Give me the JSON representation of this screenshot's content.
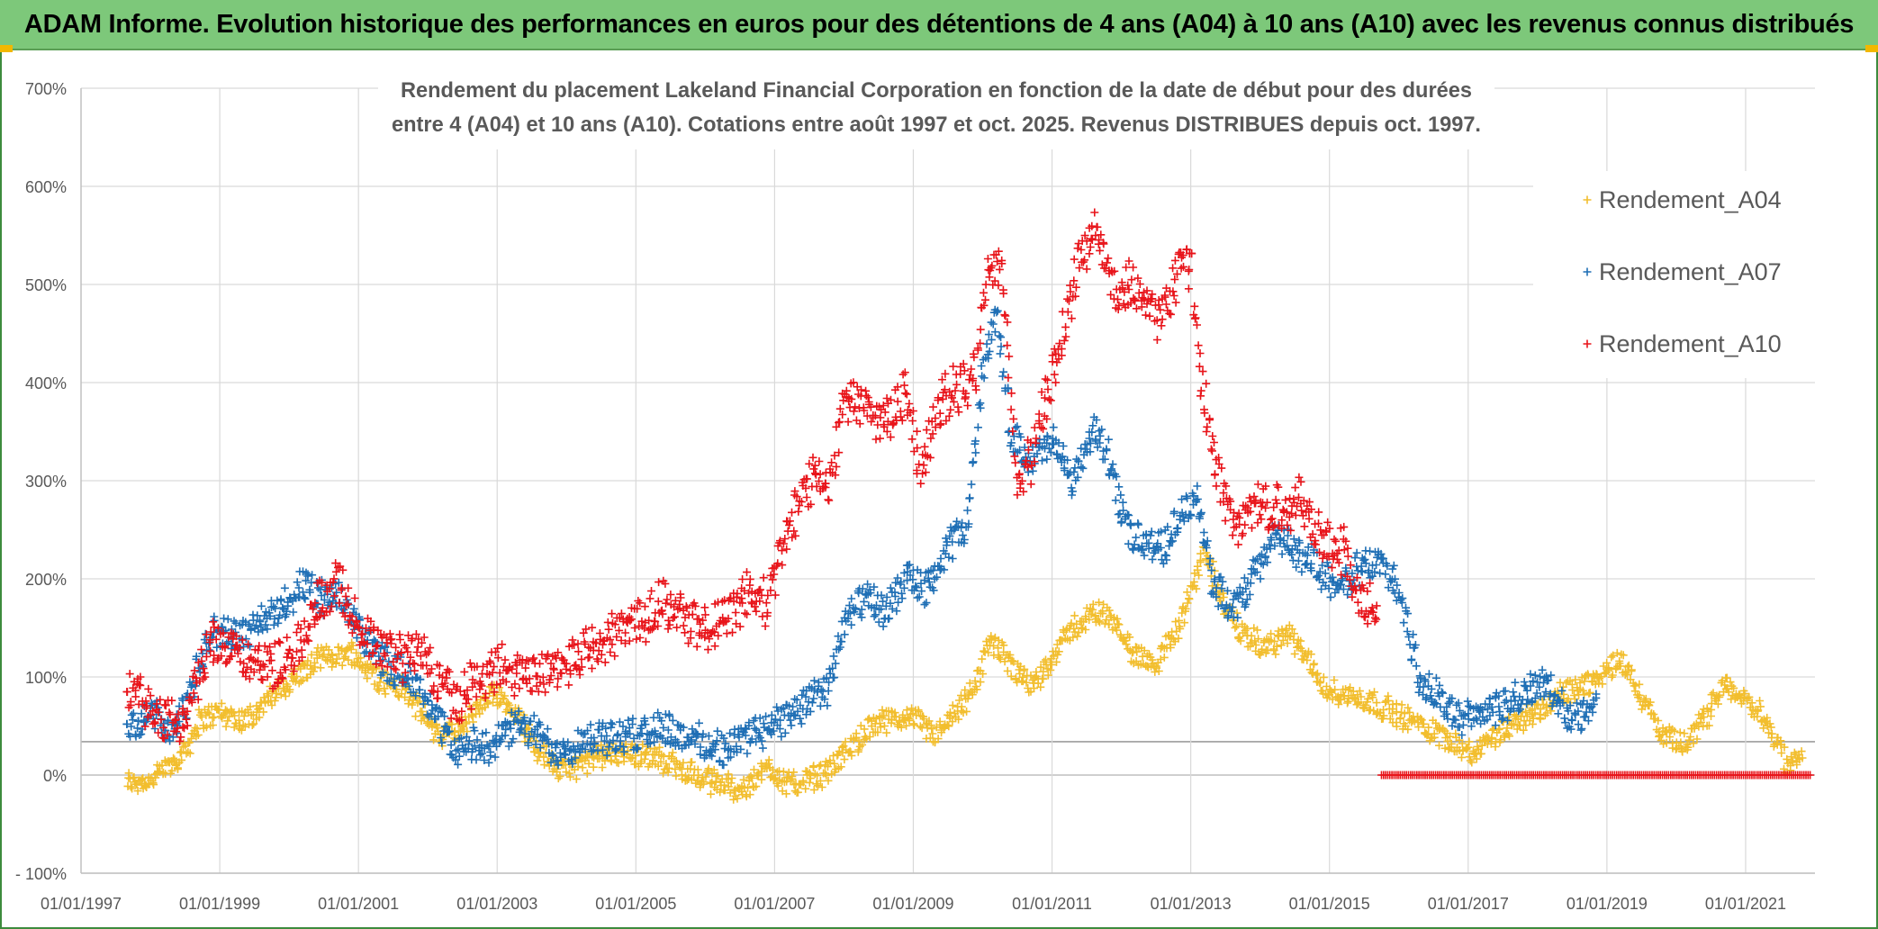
{
  "banner": {
    "title": "ADAM Informe. Evolution historique des performances en euros pour des détentions de 4 ans (A04) à 10 ans (A10) avec les revenus connus distribués"
  },
  "colors": {
    "banner_bg": "#7dc87a",
    "a04": "#f2be2e",
    "a07": "#1f6fb5",
    "a10": "#e8141a",
    "grid": "#d9d9d9",
    "text": "#595959"
  },
  "chart_data": {
    "type": "scatter",
    "title_lines": [
      "Rendement du placement Lakeland Financial Corporation en fonction de la date de début pour des durées",
      "entre 4 (A04) et 10 ans (A10). Cotations entre août 1997 et oct. 2025. Revenus DISTRIBUES depuis oct. 1997."
    ],
    "xlabel": "",
    "ylabel": "",
    "x_ticks": [
      "01/01/1997",
      "01/01/1999",
      "01/01/2001",
      "01/01/2003",
      "01/01/2005",
      "01/01/2007",
      "01/01/2009",
      "01/01/2011",
      "01/01/2013",
      "01/01/2015",
      "01/01/2017",
      "01/01/2019",
      "01/01/2021"
    ],
    "y_ticks": [
      "- 100%",
      "0%",
      "100%",
      "200%",
      "300%",
      "400%",
      "500%",
      "600%",
      "700%"
    ],
    "xlim": [
      1997.0,
      2022.0
    ],
    "ylim": [
      -100,
      700
    ],
    "grid": true,
    "legend_position": "top-right",
    "marker": "+",
    "series": [
      {
        "name": "Rendement_A04",
        "color": "#f2be2e",
        "x_range": [
          1997.67,
          2021.83
        ],
        "points": [
          [
            1997.67,
            -8
          ],
          [
            1998.0,
            -5
          ],
          [
            1998.3,
            10
          ],
          [
            1998.5,
            25
          ],
          [
            1998.7,
            55
          ],
          [
            1999.0,
            65
          ],
          [
            1999.3,
            55
          ],
          [
            1999.6,
            70
          ],
          [
            2000.0,
            95
          ],
          [
            2000.5,
            120
          ],
          [
            2000.9,
            125
          ],
          [
            2001.1,
            110
          ],
          [
            2001.4,
            95
          ],
          [
            2001.7,
            85
          ],
          [
            2002.0,
            55
          ],
          [
            2002.2,
            40
          ],
          [
            2002.4,
            45
          ],
          [
            2002.7,
            65
          ],
          [
            2003.0,
            85
          ],
          [
            2003.3,
            60
          ],
          [
            2003.6,
            25
          ],
          [
            2003.9,
            5
          ],
          [
            2004.2,
            10
          ],
          [
            2004.5,
            20
          ],
          [
            2004.8,
            25
          ],
          [
            2005.1,
            20
          ],
          [
            2005.4,
            15
          ],
          [
            2005.7,
            5
          ],
          [
            2006.0,
            -5
          ],
          [
            2006.3,
            -10
          ],
          [
            2006.6,
            -15
          ],
          [
            2006.9,
            10
          ],
          [
            2007.2,
            -10
          ],
          [
            2007.5,
            -5
          ],
          [
            2007.8,
            5
          ],
          [
            2008.1,
            30
          ],
          [
            2008.4,
            50
          ],
          [
            2008.7,
            55
          ],
          [
            2009.0,
            60
          ],
          [
            2009.3,
            40
          ],
          [
            2009.6,
            60
          ],
          [
            2009.9,
            90
          ],
          [
            2010.1,
            140
          ],
          [
            2010.4,
            110
          ],
          [
            2010.7,
            90
          ],
          [
            2011.0,
            120
          ],
          [
            2011.3,
            150
          ],
          [
            2011.6,
            165
          ],
          [
            2011.9,
            160
          ],
          [
            2012.2,
            120
          ],
          [
            2012.5,
            115
          ],
          [
            2012.8,
            145
          ],
          [
            2013.0,
            185
          ],
          [
            2013.2,
            230
          ],
          [
            2013.5,
            170
          ],
          [
            2013.8,
            140
          ],
          [
            2014.1,
            130
          ],
          [
            2014.4,
            145
          ],
          [
            2014.7,
            115
          ],
          [
            2015.0,
            85
          ],
          [
            2015.3,
            80
          ],
          [
            2015.6,
            75
          ],
          [
            2015.9,
            65
          ],
          [
            2016.2,
            55
          ],
          [
            2016.5,
            45
          ],
          [
            2016.8,
            35
          ],
          [
            2017.1,
            20
          ],
          [
            2017.4,
            40
          ],
          [
            2017.7,
            55
          ],
          [
            2018.0,
            65
          ],
          [
            2018.3,
            80
          ],
          [
            2018.6,
            90
          ],
          [
            2018.9,
            100
          ],
          [
            2019.2,
            120
          ],
          [
            2019.5,
            80
          ],
          [
            2019.8,
            40
          ],
          [
            2020.1,
            30
          ],
          [
            2020.4,
            55
          ],
          [
            2020.7,
            95
          ],
          [
            2021.0,
            75
          ],
          [
            2021.2,
            65
          ],
          [
            2021.45,
            35
          ],
          [
            2021.6,
            10
          ],
          [
            2021.83,
            20
          ]
        ]
      },
      {
        "name": "Rendement_A07",
        "color": "#1f6fb5",
        "x_range": [
          1997.67,
          2018.85
        ],
        "points": [
          [
            1997.67,
            50
          ],
          [
            1997.9,
            55
          ],
          [
            1998.1,
            60
          ],
          [
            1998.3,
            45
          ],
          [
            1998.5,
            70
          ],
          [
            1998.8,
            130
          ],
          [
            1999.0,
            150
          ],
          [
            1999.3,
            140
          ],
          [
            1999.6,
            155
          ],
          [
            1999.9,
            175
          ],
          [
            2000.2,
            190
          ],
          [
            2000.5,
            180
          ],
          [
            2000.8,
            175
          ],
          [
            2001.0,
            150
          ],
          [
            2001.3,
            120
          ],
          [
            2001.6,
            105
          ],
          [
            2001.9,
            95
          ],
          [
            2002.1,
            60
          ],
          [
            2002.4,
            25
          ],
          [
            2002.7,
            30
          ],
          [
            2003.0,
            35
          ],
          [
            2003.3,
            50
          ],
          [
            2003.6,
            40
          ],
          [
            2003.9,
            25
          ],
          [
            2004.2,
            35
          ],
          [
            2004.5,
            40
          ],
          [
            2004.8,
            35
          ],
          [
            2005.1,
            45
          ],
          [
            2005.4,
            50
          ],
          [
            2005.7,
            40
          ],
          [
            2006.0,
            30
          ],
          [
            2006.3,
            25
          ],
          [
            2006.6,
            40
          ],
          [
            2006.9,
            50
          ],
          [
            2007.2,
            60
          ],
          [
            2007.5,
            75
          ],
          [
            2007.8,
            90
          ],
          [
            2008.0,
            155
          ],
          [
            2008.3,
            180
          ],
          [
            2008.6,
            165
          ],
          [
            2008.9,
            200
          ],
          [
            2009.2,
            190
          ],
          [
            2009.5,
            230
          ],
          [
            2009.8,
            260
          ],
          [
            2010.0,
            420
          ],
          [
            2010.2,
            470
          ],
          [
            2010.4,
            350
          ],
          [
            2010.7,
            320
          ],
          [
            2011.0,
            340
          ],
          [
            2011.3,
            300
          ],
          [
            2011.6,
            350
          ],
          [
            2011.8,
            330
          ],
          [
            2012.0,
            260
          ],
          [
            2012.3,
            240
          ],
          [
            2012.6,
            230
          ],
          [
            2012.9,
            270
          ],
          [
            2013.1,
            285
          ],
          [
            2013.3,
            200
          ],
          [
            2013.6,
            165
          ],
          [
            2013.9,
            200
          ],
          [
            2014.2,
            245
          ],
          [
            2014.5,
            230
          ],
          [
            2014.8,
            215
          ],
          [
            2015.1,
            185
          ],
          [
            2015.4,
            210
          ],
          [
            2015.7,
            220
          ],
          [
            2016.0,
            190
          ],
          [
            2016.3,
            100
          ],
          [
            2016.6,
            75
          ],
          [
            2016.9,
            55
          ],
          [
            2017.2,
            65
          ],
          [
            2017.5,
            70
          ],
          [
            2017.8,
            80
          ],
          [
            2018.1,
            95
          ],
          [
            2018.4,
            65
          ],
          [
            2018.6,
            60
          ],
          [
            2018.85,
            70
          ]
        ]
      },
      {
        "name": "Rendement_A10",
        "color": "#e8141a",
        "x_range": [
          1997.67,
          2021.95
        ],
        "points": [
          [
            1997.67,
            95
          ],
          [
            1997.9,
            70
          ],
          [
            1998.1,
            55
          ],
          [
            1998.4,
            50
          ],
          [
            1998.6,
            80
          ],
          [
            1998.9,
            140
          ],
          [
            1999.2,
            135
          ],
          [
            1999.5,
            105
          ],
          [
            1999.8,
            115
          ],
          [
            2000.1,
            125
          ],
          [
            2000.4,
            170
          ],
          [
            2000.7,
            195
          ],
          [
            2000.9,
            165
          ],
          [
            2001.1,
            140
          ],
          [
            2001.4,
            125
          ],
          [
            2001.7,
            120
          ],
          [
            2001.9,
            130
          ],
          [
            2002.1,
            100
          ],
          [
            2002.4,
            75
          ],
          [
            2002.7,
            95
          ],
          [
            2003.0,
            110
          ],
          [
            2003.3,
            100
          ],
          [
            2003.6,
            105
          ],
          [
            2003.9,
            110
          ],
          [
            2004.2,
            125
          ],
          [
            2004.5,
            135
          ],
          [
            2004.8,
            150
          ],
          [
            2005.1,
            160
          ],
          [
            2005.4,
            175
          ],
          [
            2005.7,
            165
          ],
          [
            2006.0,
            150
          ],
          [
            2006.3,
            160
          ],
          [
            2006.6,
            185
          ],
          [
            2006.9,
            175
          ],
          [
            2007.1,
            230
          ],
          [
            2007.3,
            270
          ],
          [
            2007.6,
            310
          ],
          [
            2007.8,
            290
          ],
          [
            2008.0,
            390
          ],
          [
            2008.3,
            370
          ],
          [
            2008.6,
            360
          ],
          [
            2008.9,
            395
          ],
          [
            2009.1,
            310
          ],
          [
            2009.4,
            380
          ],
          [
            2009.7,
            395
          ],
          [
            2009.9,
            405
          ],
          [
            2010.1,
            525
          ],
          [
            2010.3,
            500
          ],
          [
            2010.5,
            300
          ],
          [
            2010.7,
            320
          ],
          [
            2010.9,
            380
          ],
          [
            2011.1,
            430
          ],
          [
            2011.3,
            500
          ],
          [
            2011.6,
            560
          ],
          [
            2011.9,
            490
          ],
          [
            2012.2,
            500
          ],
          [
            2012.5,
            460
          ],
          [
            2012.8,
            510
          ],
          [
            2013.0,
            520
          ],
          [
            2013.2,
            380
          ],
          [
            2013.4,
            300
          ],
          [
            2013.7,
            250
          ],
          [
            2014.0,
            280
          ],
          [
            2014.3,
            270
          ],
          [
            2014.6,
            280
          ],
          [
            2014.9,
            240
          ],
          [
            2015.2,
            230
          ],
          [
            2015.4,
            180
          ],
          [
            2015.7,
            170
          ]
        ],
        "flat_zero_range": [
          2015.75,
          2021.95
        ]
      }
    ]
  }
}
